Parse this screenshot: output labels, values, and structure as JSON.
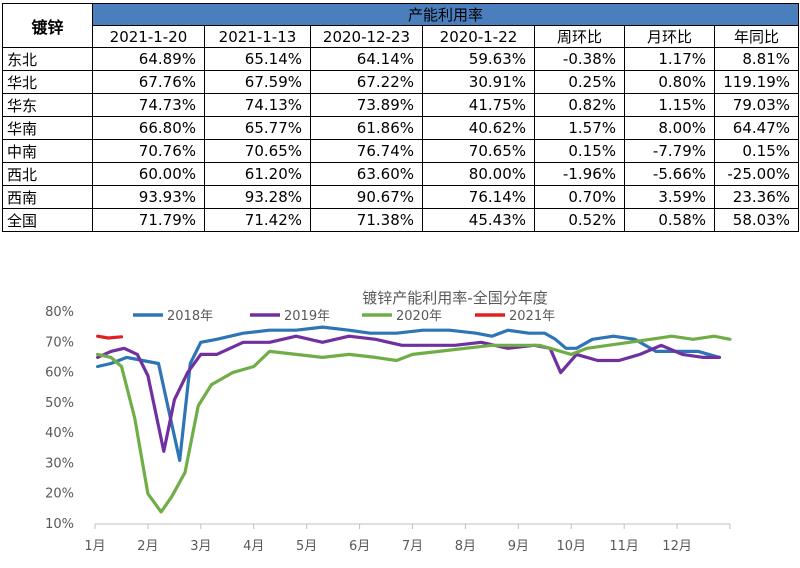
{
  "table": {
    "corner": "镀锌",
    "group_header": "产能利用率",
    "columns": [
      "2021-1-20",
      "2021-1-13",
      "2020-12-23",
      "2020-1-22",
      "周环比",
      "月环比",
      "年同比"
    ],
    "rows": [
      {
        "region": "东北",
        "values": [
          "64.89%",
          "65.14%",
          "64.14%",
          "59.63%",
          "-0.38%",
          "1.17%",
          "8.81%"
        ]
      },
      {
        "region": "华北",
        "values": [
          "67.76%",
          "67.59%",
          "67.22%",
          "30.91%",
          "0.25%",
          "0.80%",
          "119.19%"
        ]
      },
      {
        "region": "华东",
        "values": [
          "74.73%",
          "74.13%",
          "73.89%",
          "41.75%",
          "0.82%",
          "1.15%",
          "79.03%"
        ]
      },
      {
        "region": "华南",
        "values": [
          "66.80%",
          "65.77%",
          "61.86%",
          "40.62%",
          "1.57%",
          "8.00%",
          "64.47%"
        ]
      },
      {
        "region": "中南",
        "values": [
          "70.76%",
          "70.65%",
          "76.74%",
          "70.65%",
          "0.15%",
          "-7.79%",
          "0.15%"
        ]
      },
      {
        "region": "西北",
        "values": [
          "60.00%",
          "61.20%",
          "63.60%",
          "80.00%",
          "-1.96%",
          "-5.66%",
          "-25.00%"
        ]
      },
      {
        "region": "西南",
        "values": [
          "93.93%",
          "93.28%",
          "90.67%",
          "76.14%",
          "0.70%",
          "3.59%",
          "23.36%"
        ]
      },
      {
        "region": "全国",
        "values": [
          "71.79%",
          "71.42%",
          "71.38%",
          "45.43%",
          "0.52%",
          "0.58%",
          "58.03%"
        ]
      }
    ]
  },
  "chart_data": {
    "type": "line",
    "title": "镀锌产能利用率-全国分年度",
    "xlabel": "",
    "ylabel": "",
    "ylim": [
      10,
      80
    ],
    "xlim": [
      1,
      13
    ],
    "y_ticks": [
      "10%",
      "20%",
      "30%",
      "40%",
      "50%",
      "60%",
      "70%",
      "80%"
    ],
    "x_ticks": [
      "1月",
      "2月",
      "3月",
      "4月",
      "5月",
      "6月",
      "7月",
      "8月",
      "9月",
      "10月",
      "11月",
      "12月"
    ],
    "grid": false,
    "legend_position": "top",
    "series": [
      {
        "name": "2018年",
        "color": "#2e75b6",
        "points": [
          [
            1.05,
            62
          ],
          [
            1.3,
            63
          ],
          [
            1.6,
            65
          ],
          [
            1.9,
            64
          ],
          [
            2.2,
            63
          ],
          [
            2.6,
            31
          ],
          [
            2.8,
            63
          ],
          [
            3.0,
            70
          ],
          [
            3.3,
            71
          ],
          [
            3.8,
            73
          ],
          [
            4.3,
            74
          ],
          [
            4.8,
            74
          ],
          [
            5.3,
            75
          ],
          [
            5.8,
            74
          ],
          [
            6.2,
            73
          ],
          [
            6.7,
            73
          ],
          [
            7.2,
            74
          ],
          [
            7.7,
            74
          ],
          [
            8.2,
            73
          ],
          [
            8.5,
            72
          ],
          [
            8.8,
            74
          ],
          [
            9.2,
            73
          ],
          [
            9.5,
            73
          ],
          [
            9.7,
            71
          ],
          [
            9.9,
            68
          ],
          [
            10.1,
            68
          ],
          [
            10.4,
            71
          ],
          [
            10.8,
            72
          ],
          [
            11.2,
            71
          ],
          [
            11.6,
            67
          ],
          [
            12.0,
            67
          ],
          [
            12.4,
            67
          ],
          [
            12.8,
            65
          ]
        ]
      },
      {
        "name": "2019年",
        "color": "#7030a0",
        "points": [
          [
            1.05,
            65
          ],
          [
            1.3,
            67
          ],
          [
            1.55,
            68
          ],
          [
            1.8,
            66
          ],
          [
            2.0,
            59
          ],
          [
            2.3,
            34
          ],
          [
            2.5,
            51
          ],
          [
            2.75,
            60
          ],
          [
            3.0,
            66
          ],
          [
            3.3,
            66
          ],
          [
            3.8,
            70
          ],
          [
            4.3,
            70
          ],
          [
            4.8,
            72
          ],
          [
            5.3,
            70
          ],
          [
            5.8,
            72
          ],
          [
            6.3,
            71
          ],
          [
            6.8,
            69
          ],
          [
            7.3,
            69
          ],
          [
            7.8,
            69
          ],
          [
            8.3,
            70
          ],
          [
            8.8,
            68
          ],
          [
            9.3,
            69
          ],
          [
            9.6,
            68
          ],
          [
            9.8,
            60
          ],
          [
            10.1,
            66
          ],
          [
            10.5,
            64
          ],
          [
            10.9,
            64
          ],
          [
            11.3,
            66
          ],
          [
            11.7,
            69
          ],
          [
            12.1,
            66
          ],
          [
            12.5,
            65
          ],
          [
            12.8,
            65
          ]
        ]
      },
      {
        "name": "2020年",
        "color": "#70ad47",
        "points": [
          [
            1.05,
            66
          ],
          [
            1.3,
            65
          ],
          [
            1.5,
            62
          ],
          [
            1.75,
            45
          ],
          [
            2.0,
            20
          ],
          [
            2.25,
            14
          ],
          [
            2.45,
            19
          ],
          [
            2.7,
            27
          ],
          [
            2.95,
            49
          ],
          [
            3.2,
            56
          ],
          [
            3.6,
            60
          ],
          [
            4.0,
            62
          ],
          [
            4.3,
            67
          ],
          [
            4.8,
            66
          ],
          [
            5.3,
            65
          ],
          [
            5.8,
            66
          ],
          [
            6.3,
            65
          ],
          [
            6.7,
            64
          ],
          [
            7.0,
            66
          ],
          [
            7.5,
            67
          ],
          [
            8.0,
            68
          ],
          [
            8.5,
            69
          ],
          [
            9.0,
            69
          ],
          [
            9.4,
            69
          ],
          [
            9.6,
            68
          ],
          [
            10.0,
            66
          ],
          [
            10.3,
            68
          ],
          [
            10.7,
            69
          ],
          [
            11.1,
            70
          ],
          [
            11.5,
            71
          ],
          [
            11.9,
            72
          ],
          [
            12.3,
            71
          ],
          [
            12.7,
            72
          ],
          [
            13.0,
            71
          ]
        ]
      },
      {
        "name": "2021年",
        "color": "#e02020",
        "points": [
          [
            1.05,
            72
          ],
          [
            1.25,
            71.4
          ],
          [
            1.5,
            71.8
          ]
        ]
      }
    ]
  }
}
